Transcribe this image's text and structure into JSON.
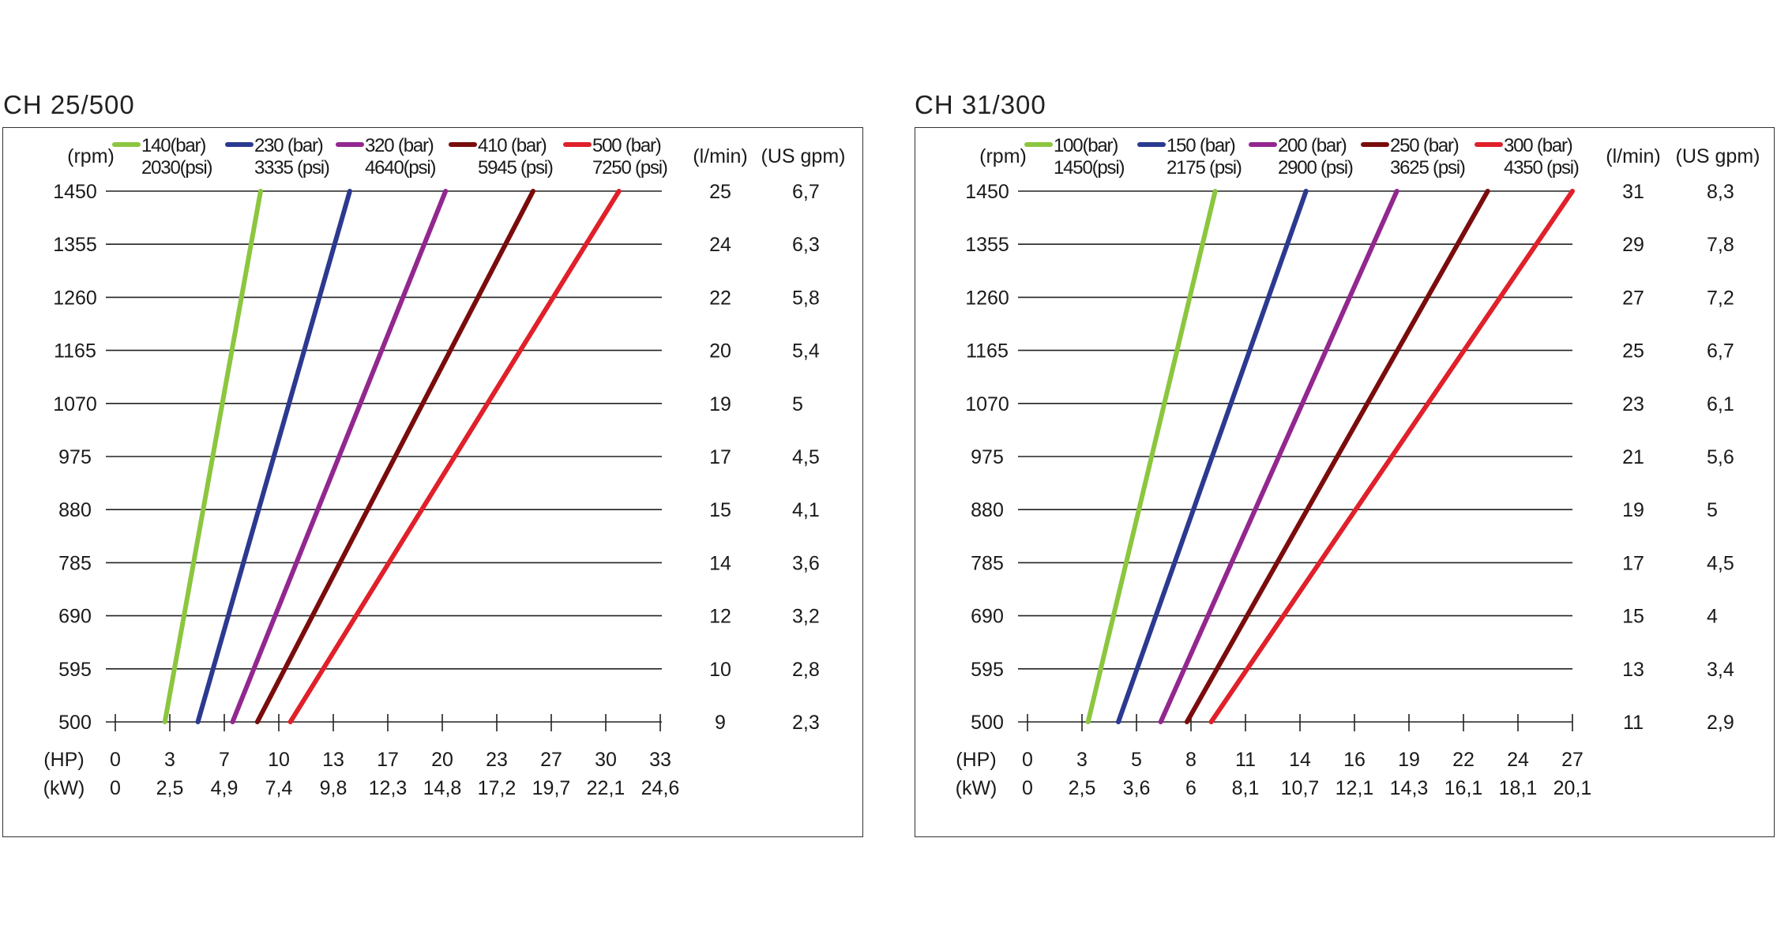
{
  "chart_data": [
    {
      "type": "line",
      "title": "CH 25/500",
      "ylabel": "(rpm)",
      "xlabel_hp": "(HP)",
      "xlabel_kw": "(kW)",
      "right_label_lmin": "(l/min)",
      "right_label_gpm": "(US gpm)",
      "rpm_ticks": [
        "1450",
        "1355",
        "1260",
        "1165",
        "1070",
        "975",
        "880",
        "785",
        "690",
        "595",
        "500"
      ],
      "lmin_ticks": [
        "25",
        "24",
        "22",
        "20",
        "19",
        "17",
        "15",
        "14",
        "12",
        "10",
        "9"
      ],
      "gpm_ticks": [
        "6,7",
        "6,3",
        "5,8",
        "5,4",
        "5",
        "4,5",
        "4,1",
        "3,6",
        "3,2",
        "2,8",
        "2,3"
      ],
      "hp_ticks": [
        "0",
        "3",
        "7",
        "10",
        "13",
        "17",
        "20",
        "23",
        "27",
        "30",
        "33"
      ],
      "kw_ticks": [
        "0",
        "2,5",
        "4,9",
        "7,4",
        "9,8",
        "12,3",
        "14,8",
        "17,2",
        "19,7",
        "22,1",
        "24,6"
      ],
      "ylim": [
        500,
        1450
      ],
      "xlim_hp": [
        0,
        33
      ],
      "series": [
        {
          "name": "140(bar)",
          "name2": "2030(psi)",
          "color": "#8cc63f",
          "x": [
            3.0,
            8.8
          ],
          "y": [
            500,
            1450
          ]
        },
        {
          "name": "230 (bar)",
          "name2": "3335 (psi)",
          "color": "#2b3990",
          "x": [
            5.0,
            14.2
          ],
          "y": [
            500,
            1450
          ]
        },
        {
          "name": "320 (bar)",
          "name2": "4640(psi)",
          "color": "#92278f",
          "x": [
            7.1,
            20.0
          ],
          "y": [
            500,
            1450
          ]
        },
        {
          "name": "410 (bar)",
          "name2": "5945 (psi)",
          "color": "#7a0c0c",
          "x": [
            8.6,
            25.3
          ],
          "y": [
            500,
            1450
          ]
        },
        {
          "name": "500 (bar)",
          "name2": "7250 (psi)",
          "color": "#e0202a",
          "x": [
            10.6,
            30.5
          ],
          "y": [
            500,
            1450
          ]
        }
      ]
    },
    {
      "type": "line",
      "title": "CH 31/300",
      "ylabel": "(rpm)",
      "xlabel_hp": "(HP)",
      "xlabel_kw": "(kW)",
      "right_label_lmin": "(l/min)",
      "right_label_gpm": "(US gpm)",
      "rpm_ticks": [
        "1450",
        "1355",
        "1260",
        "1165",
        "1070",
        "975",
        "880",
        "785",
        "690",
        "595",
        "500"
      ],
      "lmin_ticks": [
        "31",
        "29",
        "27",
        "25",
        "23",
        "21",
        "19",
        "17",
        "15",
        "13",
        "11"
      ],
      "gpm_ticks": [
        "8,3",
        "7,8",
        "7,2",
        "6,7",
        "6,1",
        "5,6",
        "5",
        "4,5",
        "4",
        "3,4",
        "2,9"
      ],
      "hp_ticks": [
        "0",
        "3",
        "5",
        "8",
        "11",
        "14",
        "16",
        "19",
        "22",
        "24",
        "27"
      ],
      "kw_ticks": [
        "0",
        "2,5",
        "3,6",
        "6",
        "8,1",
        "10,7",
        "12,1",
        "14,3",
        "16,1",
        "18,1",
        "20,1"
      ],
      "ylim": [
        500,
        1450
      ],
      "xlim_hp": [
        0,
        27
      ],
      "series": [
        {
          "name": "100(bar)",
          "name2": "1450(psi)",
          "color": "#8cc63f",
          "x": [
            3.0,
            9.3
          ],
          "y": [
            500,
            1450
          ]
        },
        {
          "name": "150 (bar)",
          "name2": "2175 (psi)",
          "color": "#2b3990",
          "x": [
            4.5,
            13.8
          ],
          "y": [
            500,
            1450
          ]
        },
        {
          "name": "200 (bar)",
          "name2": "2900 (psi)",
          "color": "#92278f",
          "x": [
            6.6,
            18.3
          ],
          "y": [
            500,
            1450
          ]
        },
        {
          "name": "250 (bar)",
          "name2": "3625 (psi)",
          "color": "#7a0c0c",
          "x": [
            7.9,
            22.8
          ],
          "y": [
            500,
            1450
          ]
        },
        {
          "name": "300 (bar)",
          "name2": "4350 (psi)",
          "color": "#e0202a",
          "x": [
            9.1,
            27.0
          ],
          "y": [
            500,
            1450
          ]
        }
      ]
    }
  ]
}
